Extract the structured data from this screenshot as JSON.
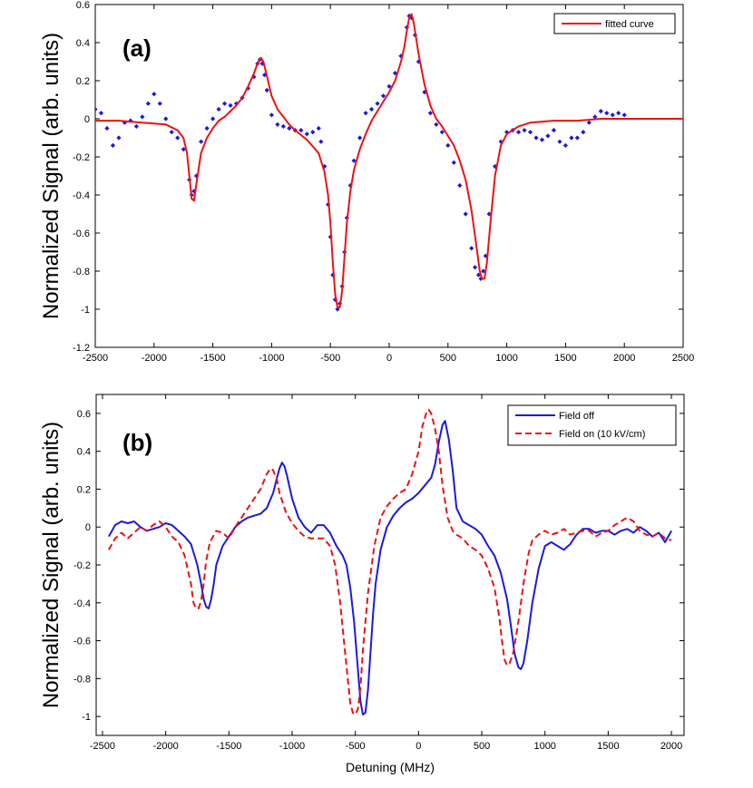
{
  "chart_data": [
    {
      "type": "line",
      "panel_label": "(a)",
      "ylabel": "Normalized Signal (arb. units)",
      "xlabel": "",
      "xlim": [
        -2500,
        2500
      ],
      "ylim": [
        -1.2,
        0.6
      ],
      "xticks": [
        -2500,
        -2000,
        -1500,
        -1000,
        -500,
        0,
        500,
        1000,
        1500,
        2000,
        2500
      ],
      "yticks": [
        -1.2,
        -1,
        -0.8,
        -0.6,
        -0.4,
        -0.2,
        0,
        0.2,
        0.4,
        0.6
      ],
      "xtick_labels": [
        "-2500",
        "-2000",
        "-1500",
        "-1000",
        "-500",
        "0",
        "500",
        "1000",
        "1500",
        "2000",
        "2500"
      ],
      "ytick_labels": [
        "-1.2",
        "-1",
        "-0.8",
        "-0.6",
        "-0.4",
        "-0.2",
        "0",
        "0.2",
        "0.4",
        "0.6"
      ],
      "legend": {
        "position": "top-right",
        "entries": [
          "fitted curve"
        ]
      },
      "series": [
        {
          "name": "data points",
          "color": "#1a1adf",
          "style": "markers",
          "x": [
            -2500,
            -2450,
            -2400,
            -2350,
            -2300,
            -2250,
            -2200,
            -2150,
            -2100,
            -2050,
            -2000,
            -1950,
            -1900,
            -1850,
            -1800,
            -1750,
            -1700,
            -1680,
            -1660,
            -1640,
            -1600,
            -1550,
            -1500,
            -1450,
            -1400,
            -1350,
            -1300,
            -1250,
            -1200,
            -1150,
            -1120,
            -1100,
            -1080,
            -1060,
            -1040,
            -1000,
            -950,
            -900,
            -850,
            -800,
            -750,
            -700,
            -650,
            -600,
            -580,
            -550,
            -520,
            -500,
            -480,
            -460,
            -440,
            -420,
            -400,
            -380,
            -360,
            -330,
            -300,
            -250,
            -200,
            -150,
            -100,
            -50,
            0,
            50,
            100,
            150,
            170,
            190,
            220,
            250,
            300,
            350,
            400,
            450,
            500,
            550,
            600,
            650,
            700,
            730,
            760,
            780,
            800,
            820,
            850,
            900,
            950,
            1000,
            1050,
            1100,
            1150,
            1200,
            1250,
            1300,
            1350,
            1400,
            1450,
            1500,
            1550,
            1600,
            1650,
            1700,
            1750,
            1800,
            1850,
            1900,
            1950,
            2000
          ],
          "y": [
            0.05,
            0.03,
            -0.05,
            -0.14,
            -0.1,
            -0.02,
            -0.01,
            -0.04,
            0.01,
            0.08,
            0.13,
            0.08,
            0.0,
            -0.07,
            -0.1,
            -0.16,
            -0.32,
            -0.4,
            -0.38,
            -0.3,
            -0.12,
            -0.05,
            0.0,
            0.05,
            0.08,
            0.07,
            0.08,
            0.11,
            0.16,
            0.22,
            0.29,
            0.31,
            0.29,
            0.23,
            0.15,
            0.02,
            -0.03,
            -0.04,
            -0.05,
            -0.06,
            -0.06,
            -0.08,
            -0.07,
            -0.05,
            -0.12,
            -0.25,
            -0.45,
            -0.62,
            -0.82,
            -0.95,
            -1.0,
            -0.97,
            -0.88,
            -0.7,
            -0.52,
            -0.35,
            -0.22,
            -0.1,
            0.03,
            0.05,
            0.08,
            0.12,
            0.17,
            0.24,
            0.33,
            0.48,
            0.54,
            0.53,
            0.44,
            0.3,
            0.14,
            0.03,
            -0.03,
            -0.07,
            -0.14,
            -0.23,
            -0.35,
            -0.5,
            -0.68,
            -0.78,
            -0.82,
            -0.84,
            -0.8,
            -0.72,
            -0.5,
            -0.25,
            -0.12,
            -0.07,
            -0.06,
            -0.07,
            -0.06,
            -0.07,
            -0.1,
            -0.11,
            -0.09,
            -0.06,
            -0.12,
            -0.14,
            -0.1,
            -0.1,
            -0.07,
            -0.02,
            0.01,
            0.04,
            0.03,
            0.02,
            0.03,
            0.02
          ]
        },
        {
          "name": "fitted curve",
          "color": "#ee1111",
          "style": "solid",
          "x": [
            -2500,
            -2300,
            -2100,
            -1900,
            -1800,
            -1750,
            -1720,
            -1700,
            -1680,
            -1660,
            -1640,
            -1600,
            -1550,
            -1500,
            -1450,
            -1400,
            -1350,
            -1300,
            -1250,
            -1200,
            -1150,
            -1120,
            -1090,
            -1070,
            -1050,
            -1000,
            -950,
            -900,
            -850,
            -800,
            -700,
            -600,
            -550,
            -520,
            -500,
            -480,
            -460,
            -440,
            -420,
            -400,
            -380,
            -360,
            -330,
            -300,
            -250,
            -200,
            -150,
            -100,
            -50,
            0,
            50,
            100,
            130,
            150,
            170,
            190,
            210,
            250,
            300,
            350,
            400,
            450,
            500,
            550,
            600,
            650,
            700,
            740,
            770,
            790,
            810,
            830,
            860,
            900,
            950,
            1000,
            1100,
            1200,
            1400,
            1600,
            1800,
            2000,
            2200,
            2500
          ],
          "y": [
            -0.01,
            -0.01,
            -0.02,
            -0.03,
            -0.06,
            -0.1,
            -0.18,
            -0.3,
            -0.42,
            -0.43,
            -0.34,
            -0.18,
            -0.1,
            -0.05,
            -0.01,
            0.01,
            0.04,
            0.07,
            0.11,
            0.17,
            0.24,
            0.29,
            0.32,
            0.3,
            0.25,
            0.12,
            0.05,
            0.01,
            -0.03,
            -0.06,
            -0.11,
            -0.18,
            -0.28,
            -0.4,
            -0.55,
            -0.75,
            -0.92,
            -0.99,
            -0.99,
            -0.9,
            -0.72,
            -0.55,
            -0.38,
            -0.27,
            -0.16,
            -0.08,
            -0.01,
            0.04,
            0.09,
            0.14,
            0.2,
            0.3,
            0.38,
            0.46,
            0.53,
            0.55,
            0.5,
            0.34,
            0.18,
            0.07,
            0.0,
            -0.04,
            -0.09,
            -0.14,
            -0.22,
            -0.32,
            -0.48,
            -0.66,
            -0.8,
            -0.84,
            -0.84,
            -0.76,
            -0.55,
            -0.3,
            -0.14,
            -0.08,
            -0.04,
            -0.02,
            -0.01,
            -0.01,
            0.0,
            0.0,
            0.0,
            0.0
          ]
        }
      ]
    },
    {
      "type": "line",
      "panel_label": "(b)",
      "ylabel": "Normalized Signal (arb. units)",
      "xlabel": "Detuning (MHz)",
      "xlim": [
        -2550,
        2100
      ],
      "ylim": [
        -1.1,
        0.7
      ],
      "xticks": [
        -2500,
        -2000,
        -1500,
        -1000,
        -500,
        0,
        500,
        1000,
        1500,
        2000
      ],
      "yticks": [
        -1,
        -0.8,
        -0.6,
        -0.4,
        -0.2,
        0,
        0.2,
        0.4,
        0.6
      ],
      "xtick_labels": [
        "-2500",
        "-2000",
        "-1500",
        "-1000",
        "-500",
        "0",
        "500",
        "1000",
        "1500",
        "2000"
      ],
      "ytick_labels": [
        "-1",
        "-0.8",
        "-0.6",
        "-0.4",
        "-0.2",
        "0",
        "0.2",
        "0.4",
        "0.6"
      ],
      "legend": {
        "position": "top-right",
        "entries": [
          "Field off",
          "Field on (10 kV/cm)"
        ]
      },
      "series": [
        {
          "name": "Field off",
          "color": "#1a1adf",
          "style": "solid",
          "x": [
            -2450,
            -2400,
            -2350,
            -2300,
            -2250,
            -2200,
            -2150,
            -2100,
            -2050,
            -2000,
            -1950,
            -1900,
            -1850,
            -1800,
            -1750,
            -1720,
            -1700,
            -1680,
            -1660,
            -1640,
            -1620,
            -1600,
            -1550,
            -1500,
            -1450,
            -1400,
            -1350,
            -1300,
            -1250,
            -1200,
            -1150,
            -1120,
            -1100,
            -1080,
            -1060,
            -1040,
            -1000,
            -950,
            -900,
            -850,
            -800,
            -750,
            -700,
            -650,
            -600,
            -570,
            -540,
            -510,
            -480,
            -460,
            -440,
            -420,
            -400,
            -380,
            -360,
            -340,
            -300,
            -250,
            -200,
            -150,
            -100,
            -50,
            0,
            50,
            100,
            130,
            160,
            190,
            210,
            240,
            270,
            300,
            350,
            400,
            450,
            500,
            550,
            600,
            650,
            700,
            730,
            760,
            790,
            810,
            830,
            860,
            900,
            950,
            1000,
            1050,
            1100,
            1150,
            1200,
            1250,
            1300,
            1350,
            1400,
            1450,
            1500,
            1550,
            1600,
            1650,
            1700,
            1750,
            1800,
            1850,
            1900,
            1950,
            2000
          ],
          "y": [
            -0.05,
            0.01,
            0.03,
            0.02,
            0.03,
            0.0,
            -0.02,
            -0.01,
            0.0,
            0.02,
            0.01,
            -0.02,
            -0.05,
            -0.09,
            -0.2,
            -0.3,
            -0.38,
            -0.42,
            -0.43,
            -0.38,
            -0.3,
            -0.2,
            -0.1,
            -0.05,
            0.0,
            0.03,
            0.05,
            0.06,
            0.07,
            0.1,
            0.18,
            0.26,
            0.31,
            0.34,
            0.32,
            0.27,
            0.15,
            0.05,
            0.0,
            -0.03,
            0.01,
            0.01,
            -0.03,
            -0.1,
            -0.15,
            -0.2,
            -0.32,
            -0.5,
            -0.75,
            -0.92,
            -0.99,
            -0.98,
            -0.86,
            -0.66,
            -0.46,
            -0.3,
            -0.12,
            0.0,
            0.06,
            0.1,
            0.13,
            0.15,
            0.18,
            0.22,
            0.26,
            0.33,
            0.45,
            0.54,
            0.56,
            0.46,
            0.3,
            0.1,
            0.03,
            0.01,
            -0.01,
            -0.04,
            -0.1,
            -0.15,
            -0.24,
            -0.38,
            -0.52,
            -0.67,
            -0.74,
            -0.75,
            -0.72,
            -0.6,
            -0.4,
            -0.22,
            -0.1,
            -0.08,
            -0.1,
            -0.12,
            -0.09,
            -0.04,
            -0.01,
            -0.01,
            -0.03,
            -0.02,
            -0.02,
            -0.04,
            -0.02,
            -0.01,
            -0.03,
            0.0,
            -0.02,
            -0.05,
            -0.03,
            -0.08,
            -0.02
          ]
        },
        {
          "name": "Field on (10 kV/cm)",
          "color": "#ee1111",
          "style": "dashed",
          "x": [
            -2450,
            -2400,
            -2350,
            -2300,
            -2250,
            -2200,
            -2150,
            -2100,
            -2050,
            -2000,
            -1950,
            -1900,
            -1850,
            -1800,
            -1780,
            -1760,
            -1740,
            -1720,
            -1700,
            -1680,
            -1650,
            -1600,
            -1550,
            -1500,
            -1450,
            -1400,
            -1350,
            -1300,
            -1250,
            -1200,
            -1170,
            -1150,
            -1120,
            -1100,
            -1050,
            -1000,
            -950,
            -900,
            -850,
            -800,
            -750,
            -700,
            -660,
            -620,
            -590,
            -560,
            -540,
            -520,
            -500,
            -480,
            -460,
            -440,
            -400,
            -350,
            -300,
            -250,
            -200,
            -150,
            -100,
            -50,
            0,
            30,
            60,
            80,
            100,
            130,
            160,
            190,
            230,
            270,
            300,
            350,
            400,
            450,
            500,
            550,
            600,
            640,
            660,
            680,
            700,
            720,
            750,
            790,
            830,
            870,
            900,
            950,
            1000,
            1050,
            1100,
            1150,
            1200,
            1250,
            1300,
            1350,
            1400,
            1450,
            1500,
            1550,
            1600,
            1650,
            1700,
            1750,
            1800,
            1850,
            1900,
            1950,
            2000
          ],
          "y": [
            -0.12,
            -0.06,
            -0.03,
            -0.06,
            -0.03,
            0.0,
            -0.02,
            0.01,
            0.03,
            0.0,
            -0.05,
            -0.08,
            -0.15,
            -0.3,
            -0.4,
            -0.43,
            -0.43,
            -0.39,
            -0.3,
            -0.18,
            -0.08,
            -0.02,
            -0.03,
            -0.06,
            0.0,
            0.05,
            0.1,
            0.15,
            0.2,
            0.28,
            0.31,
            0.3,
            0.25,
            0.18,
            0.08,
            0.02,
            -0.02,
            -0.05,
            -0.06,
            -0.06,
            -0.06,
            -0.1,
            -0.2,
            -0.4,
            -0.6,
            -0.8,
            -0.93,
            -0.98,
            -0.99,
            -0.96,
            -0.85,
            -0.65,
            -0.35,
            -0.1,
            0.05,
            0.11,
            0.15,
            0.18,
            0.2,
            0.28,
            0.4,
            0.53,
            0.6,
            0.62,
            0.6,
            0.52,
            0.4,
            0.22,
            0.05,
            -0.02,
            -0.04,
            -0.06,
            -0.1,
            -0.12,
            -0.15,
            -0.22,
            -0.32,
            -0.48,
            -0.6,
            -0.7,
            -0.73,
            -0.72,
            -0.66,
            -0.5,
            -0.3,
            -0.14,
            -0.07,
            -0.04,
            -0.02,
            -0.04,
            -0.03,
            -0.01,
            -0.04,
            -0.03,
            -0.02,
            -0.02,
            -0.05,
            -0.03,
            -0.02,
            0.01,
            0.03,
            0.05,
            0.03,
            -0.02,
            -0.04,
            -0.05,
            -0.03,
            -0.06,
            -0.07
          ]
        }
      ]
    }
  ]
}
